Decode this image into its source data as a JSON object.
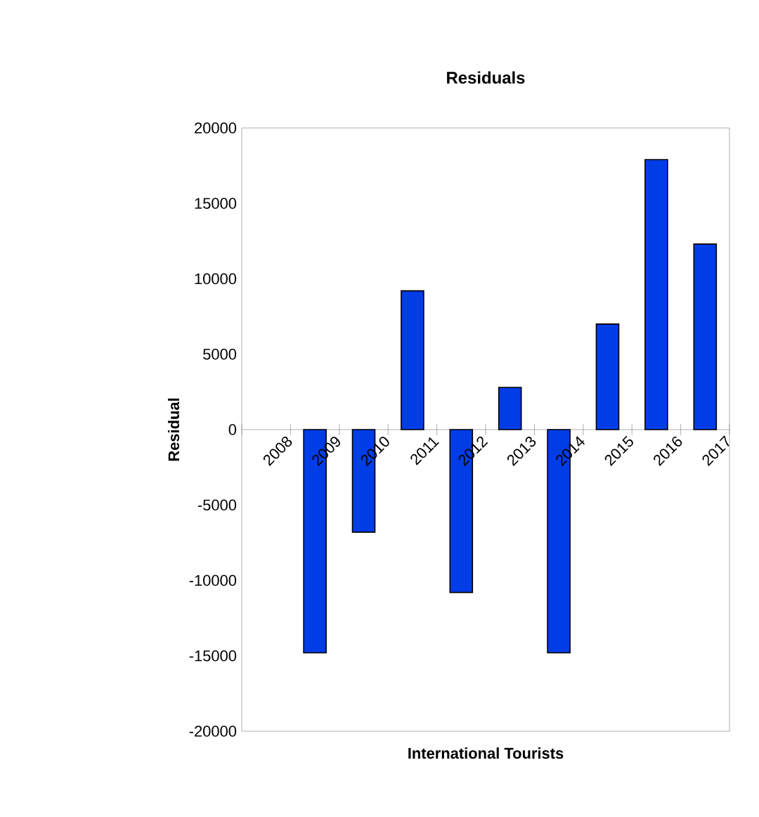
{
  "chart_data": {
    "type": "bar",
    "title": "Residuals",
    "xlabel": "International Tourists",
    "ylabel": "Residual",
    "categories": [
      "2008",
      "2009",
      "2010",
      "2011",
      "2012",
      "2013",
      "2014",
      "2015",
      "2016",
      "2017"
    ],
    "values": [
      null,
      -14800,
      -6800,
      9200,
      -10800,
      2800,
      -14800,
      7000,
      17900,
      12300
    ],
    "color": "#003de6",
    "ylim": [
      -20000,
      20000
    ],
    "yticks": [
      -20000,
      -15000,
      -10000,
      -5000,
      0,
      5000,
      10000,
      15000,
      20000
    ],
    "grid": false
  }
}
